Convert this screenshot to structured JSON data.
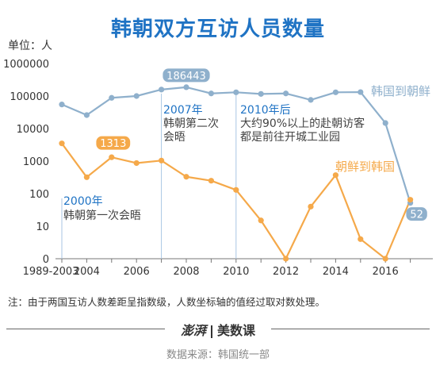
{
  "title": "韩朝双方互访人员数量",
  "unit_label": "单位：人",
  "note": "注：由于两国互访人数差距呈指数级，人数坐标轴的值经过取对数处理。",
  "brand": {
    "left": "澎湃",
    "right": "美数课"
  },
  "source": "数据来源：韩国统一部",
  "colors": {
    "title": "#1f73c4",
    "south_to_north": "#8fb0cc",
    "north_to_south": "#f5a94a",
    "annotation": "#1f73c4",
    "gridline": "#a9c6e3"
  },
  "chart_data": {
    "type": "line",
    "y_scale": "log",
    "y_ticks": [
      "1000000",
      "100000",
      "10000",
      "1000",
      "100",
      "10",
      "0"
    ],
    "x_ticks": [
      "1989-2003",
      "2004",
      "2006",
      "2008",
      "2010",
      "2012",
      "2014",
      "2016"
    ],
    "x": [
      "1989-2003",
      "2004",
      "2005",
      "2006",
      "2007",
      "2008",
      "2009",
      "2010",
      "2011",
      "2012",
      "2013",
      "2014",
      "2015",
      "2016",
      "2017"
    ],
    "series": [
      {
        "name": "韩国到朝鲜",
        "values": [
          55000,
          26000,
          88000,
          100000,
          158000,
          186443,
          120000,
          130000,
          116000,
          120000,
          76000,
          130000,
          132000,
          14800,
          52
        ]
      },
      {
        "name": "朝鲜到韩国",
        "values": [
          3500,
          320,
          1313,
          870,
          1040,
          330,
          250,
          130,
          15,
          0,
          40,
          370,
          4,
          0,
          65
        ]
      }
    ],
    "callouts": [
      {
        "text": "186443",
        "series": 0,
        "index": 5
      },
      {
        "text": "1313",
        "series": 1,
        "index": 2
      },
      {
        "text": "52",
        "series": 0,
        "index": 14
      }
    ],
    "annotations": [
      {
        "year": "2000年",
        "text": "韩朝第一次会晤"
      },
      {
        "year": "2007年",
        "text1": "韩朝第二次",
        "text2": "会晤"
      },
      {
        "year": "2010年后",
        "text1": "大约90%以上的赴朝访客",
        "text2": "都是前往开城工业园"
      }
    ]
  }
}
